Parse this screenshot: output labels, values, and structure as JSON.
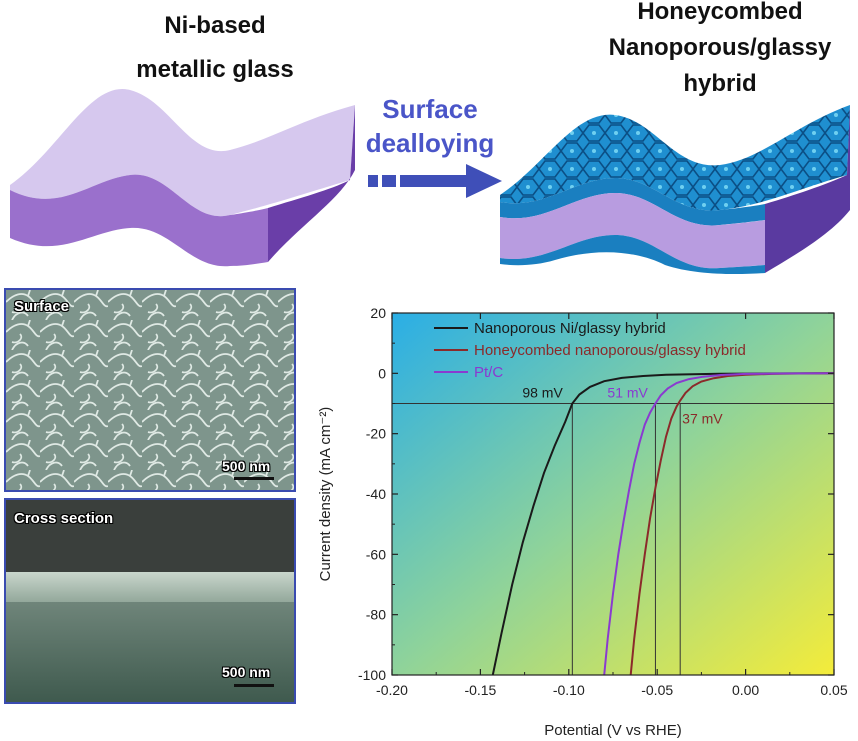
{
  "top": {
    "left_title": [
      "Ni-based",
      "metallic glass"
    ],
    "right_title": [
      "Honeycombed",
      "Nanoporous/glassy",
      "hybrid"
    ],
    "arrow_label": [
      "Surface",
      "dealloying"
    ]
  },
  "sem": {
    "surface_label": "Surface",
    "surface_scale": "500 nm",
    "cross_label": "Cross section",
    "cross_scale": "500 nm"
  },
  "colors": {
    "purple_light": "#d4c4ec",
    "purple_dark": "#8a5cc0",
    "arrow": "#3f4fb8",
    "blue": "#1f8fd0",
    "panel_border": "#3a4bb0"
  },
  "chart_data": {
    "type": "line",
    "xlabel": "Potential (V vs RHE)",
    "ylabel": "Current density (mA cm⁻²)",
    "xlim": [
      -0.2,
      0.05
    ],
    "ylim": [
      -100,
      20
    ],
    "xticks": [
      "-0.20",
      "-0.15",
      "-0.10",
      "-0.05",
      "0.00",
      "0.05"
    ],
    "xtick_values": [
      -0.2,
      -0.15,
      -0.1,
      -0.05,
      0.0,
      0.05
    ],
    "yticks": [
      "20",
      "0",
      "-20",
      "-40",
      "-60",
      "-80",
      "-100"
    ],
    "ytick_values": [
      20,
      0,
      -20,
      -40,
      -60,
      -80,
      -100
    ],
    "reference_line_y": -10,
    "series": [
      {
        "name": "Nanoporous Ni/glassy hybrid",
        "color": "#1a1a1a",
        "x": [
          -0.143,
          -0.138,
          -0.132,
          -0.126,
          -0.12,
          -0.114,
          -0.108,
          -0.102,
          -0.098,
          -0.094,
          -0.088,
          -0.08,
          -0.07,
          -0.058,
          -0.045,
          -0.03,
          -0.015,
          0.0,
          0.02,
          0.05
        ],
        "y": [
          -100,
          -86,
          -70,
          -56,
          -44,
          -33,
          -24,
          -16,
          -10,
          -7,
          -4.5,
          -2.6,
          -1.5,
          -0.9,
          -0.5,
          -0.3,
          -0.15,
          -0.08,
          -0.03,
          0
        ]
      },
      {
        "name": "Honeycombed nanoporous/glassy hybrid",
        "color": "#8b2a2a",
        "x": [
          -0.065,
          -0.063,
          -0.06,
          -0.057,
          -0.054,
          -0.051,
          -0.048,
          -0.045,
          -0.042,
          -0.039,
          -0.037,
          -0.034,
          -0.03,
          -0.025,
          -0.018,
          -0.01,
          0.0,
          0.015,
          0.03,
          0.05
        ],
        "y": [
          -100,
          -88,
          -73,
          -60,
          -48,
          -38,
          -29,
          -21,
          -15,
          -11,
          -9,
          -6.5,
          -4.3,
          -2.7,
          -1.6,
          -0.9,
          -0.45,
          -0.2,
          -0.05,
          0
        ]
      },
      {
        "name": "Pt/C",
        "color": "#8a3ad0",
        "x": [
          -0.08,
          -0.078,
          -0.075,
          -0.072,
          -0.069,
          -0.066,
          -0.063,
          -0.06,
          -0.057,
          -0.054,
          -0.051,
          -0.048,
          -0.044,
          -0.039,
          -0.032,
          -0.024,
          -0.014,
          0.0,
          0.02,
          0.05
        ],
        "y": [
          -100,
          -88,
          -73,
          -60,
          -49,
          -39,
          -30,
          -23,
          -17,
          -13,
          -10,
          -7.3,
          -5,
          -3.2,
          -1.9,
          -1.1,
          -0.55,
          -0.2,
          -0.05,
          0
        ]
      }
    ],
    "annotations": [
      {
        "text": "98 mV",
        "color": "#1a1a1a",
        "x": -0.098
      },
      {
        "text": "51 mV",
        "color": "#8a3ad0",
        "x": -0.051
      },
      {
        "text": "37 mV",
        "color": "#8b2a2a",
        "x": -0.037
      }
    ]
  }
}
